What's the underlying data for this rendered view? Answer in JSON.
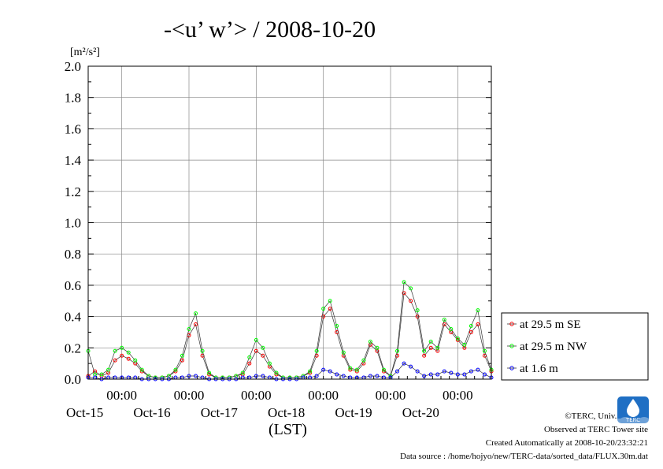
{
  "title": "-<u’ w’> / 2008-10-20",
  "y_unit": "[m²/s²]",
  "x_time_label": "00:00",
  "x_axis_label": "(LST)",
  "credits": {
    "copyright": "©TERC, Univ. Tsukuba",
    "observed": "Observed at TERC Tower site",
    "created": "Created Automatically at 2008-10-20/23:32:21",
    "source": "Data source : /home/hojyo/new/TERC-data/sorted_data/FLUX.30m.dat"
  },
  "logo_text": "TERC",
  "chart_data": {
    "type": "line",
    "ylim": [
      0,
      2.0
    ],
    "ytick_labels": [
      "0.0",
      "0.2",
      "0.4",
      "0.6",
      "0.8",
      "1.0",
      "1.2",
      "1.4",
      "1.6",
      "1.8",
      "2.0"
    ],
    "xlim": [
      0,
      6
    ],
    "x_unit": "days from 2008-10-14 12:00 (LST)",
    "day_labels": [
      "Oct-15",
      "Oct-16",
      "Oct-17",
      "Oct-18",
      "Oct-19",
      "Oct-20"
    ],
    "grid": true,
    "legend": "right",
    "series": [
      {
        "name": "at 29.5 m SE",
        "color": "#ff0000",
        "x": [
          0.0,
          0.1,
          0.2,
          0.3,
          0.4,
          0.5,
          0.6,
          0.7,
          0.8,
          0.9,
          1.0,
          1.1,
          1.2,
          1.3,
          1.4,
          1.5,
          1.6,
          1.7,
          1.8,
          1.9,
          2.0,
          2.1,
          2.2,
          2.3,
          2.4,
          2.5,
          2.6,
          2.7,
          2.8,
          2.9,
          3.0,
          3.1,
          3.2,
          3.3,
          3.4,
          3.5,
          3.6,
          3.7,
          3.8,
          3.9,
          4.0,
          4.1,
          4.2,
          4.3,
          4.4,
          4.5,
          4.6,
          4.7,
          4.8,
          4.9,
          5.0,
          5.1,
          5.2,
          5.3,
          5.4,
          5.5,
          5.6,
          5.7,
          5.8,
          5.9,
          6.0
        ],
        "values": [
          0.02,
          0.05,
          0.02,
          0.04,
          0.12,
          0.15,
          0.13,
          0.1,
          0.05,
          0.02,
          0.01,
          0.01,
          0.02,
          0.05,
          0.12,
          0.28,
          0.35,
          0.15,
          0.03,
          0.01,
          0.01,
          0.01,
          0.02,
          0.03,
          0.1,
          0.18,
          0.15,
          0.08,
          0.03,
          0.01,
          0.01,
          0.01,
          0.02,
          0.04,
          0.15,
          0.4,
          0.45,
          0.3,
          0.15,
          0.06,
          0.05,
          0.1,
          0.22,
          0.18,
          0.05,
          0.02,
          0.15,
          0.55,
          0.5,
          0.4,
          0.15,
          0.2,
          0.18,
          0.35,
          0.3,
          0.25,
          0.2,
          0.3,
          0.35,
          0.15,
          0.05
        ]
      },
      {
        "name": "at 29.5 m NW",
        "color": "#00ff00",
        "x": [
          0.0,
          0.1,
          0.2,
          0.3,
          0.4,
          0.5,
          0.6,
          0.7,
          0.8,
          0.9,
          1.0,
          1.1,
          1.2,
          1.3,
          1.4,
          1.5,
          1.6,
          1.7,
          1.8,
          1.9,
          2.0,
          2.1,
          2.2,
          2.3,
          2.4,
          2.5,
          2.6,
          2.7,
          2.8,
          2.9,
          3.0,
          3.1,
          3.2,
          3.3,
          3.4,
          3.5,
          3.6,
          3.7,
          3.8,
          3.9,
          4.0,
          4.1,
          4.2,
          4.3,
          4.4,
          4.5,
          4.6,
          4.7,
          4.8,
          4.9,
          5.0,
          5.1,
          5.2,
          5.3,
          5.4,
          5.5,
          5.6,
          5.7,
          5.8,
          5.9,
          6.0
        ],
        "values": [
          0.18,
          0.03,
          0.03,
          0.06,
          0.18,
          0.2,
          0.17,
          0.12,
          0.06,
          0.02,
          0.01,
          0.01,
          0.02,
          0.06,
          0.15,
          0.32,
          0.42,
          0.18,
          0.04,
          0.01,
          0.01,
          0.01,
          0.02,
          0.04,
          0.14,
          0.25,
          0.2,
          0.1,
          0.04,
          0.01,
          0.01,
          0.01,
          0.02,
          0.05,
          0.18,
          0.45,
          0.5,
          0.34,
          0.17,
          0.07,
          0.06,
          0.12,
          0.24,
          0.2,
          0.06,
          0.02,
          0.18,
          0.62,
          0.58,
          0.44,
          0.18,
          0.24,
          0.2,
          0.38,
          0.32,
          0.26,
          0.22,
          0.34,
          0.44,
          0.18,
          0.06
        ]
      },
      {
        "name": "at 1.6 m",
        "color": "#0000ff",
        "x": [
          0.0,
          0.1,
          0.2,
          0.3,
          0.4,
          0.5,
          0.6,
          0.7,
          0.8,
          0.9,
          1.0,
          1.1,
          1.2,
          1.3,
          1.4,
          1.5,
          1.6,
          1.7,
          1.8,
          1.9,
          2.0,
          2.1,
          2.2,
          2.3,
          2.4,
          2.5,
          2.6,
          2.7,
          2.8,
          2.9,
          3.0,
          3.1,
          3.2,
          3.3,
          3.4,
          3.5,
          3.6,
          3.7,
          3.8,
          3.9,
          4.0,
          4.1,
          4.2,
          4.3,
          4.4,
          4.5,
          4.6,
          4.7,
          4.8,
          4.9,
          5.0,
          5.1,
          5.2,
          5.3,
          5.4,
          5.5,
          5.6,
          5.7,
          5.8,
          5.9,
          6.0
        ],
        "values": [
          0.01,
          0.01,
          0.0,
          0.01,
          0.01,
          0.01,
          0.01,
          0.01,
          0.0,
          0.0,
          0.0,
          0.0,
          0.0,
          0.01,
          0.01,
          0.02,
          0.02,
          0.01,
          0.0,
          0.0,
          0.0,
          0.0,
          0.0,
          0.01,
          0.01,
          0.02,
          0.02,
          0.01,
          0.0,
          0.0,
          0.0,
          0.0,
          0.01,
          0.01,
          0.02,
          0.06,
          0.05,
          0.03,
          0.02,
          0.01,
          0.01,
          0.01,
          0.02,
          0.02,
          0.01,
          0.01,
          0.05,
          0.1,
          0.08,
          0.05,
          0.02,
          0.03,
          0.03,
          0.05,
          0.04,
          0.03,
          0.03,
          0.05,
          0.06,
          0.03,
          0.01
        ]
      }
    ]
  }
}
